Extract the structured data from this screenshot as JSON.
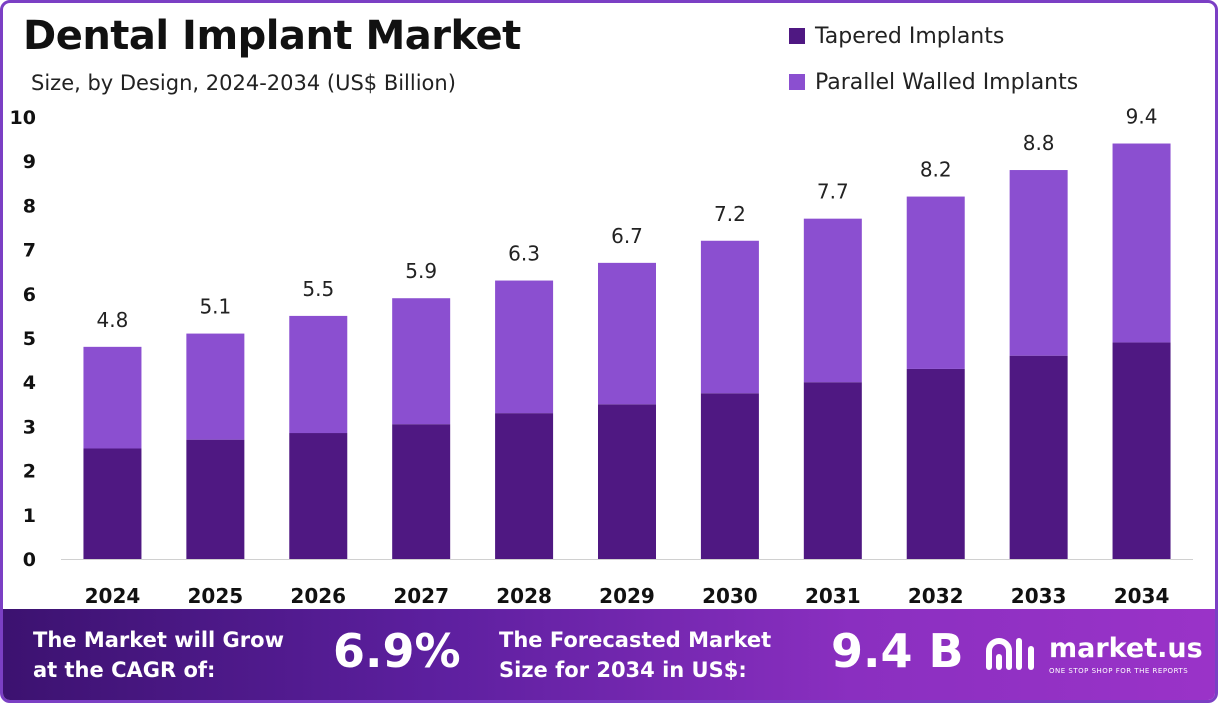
{
  "title": "Dental Implant Market",
  "subtitle": "Size, by Design, 2024-2034 (US$ Billion)",
  "colors": {
    "tapered": "#4f1882",
    "parallel": "#8b4fd0",
    "accent": "#7b3fc4"
  },
  "chart_data": {
    "type": "bar",
    "stacked": true,
    "title": "Dental Implant Market",
    "subtitle": "Size, by Design, 2024-2034 (US$ Billion)",
    "categories": [
      "2024",
      "2025",
      "2026",
      "2027",
      "2028",
      "2029",
      "2030",
      "2031",
      "2032",
      "2033",
      "2034"
    ],
    "series": [
      {
        "name": "Tapered Implants",
        "color": "#4f1882",
        "values": [
          2.5,
          2.7,
          2.85,
          3.05,
          3.3,
          3.5,
          3.75,
          4.0,
          4.3,
          4.6,
          4.9
        ]
      },
      {
        "name": "Parallel Walled Implants",
        "color": "#8b4fd0",
        "values": [
          2.3,
          2.4,
          2.65,
          2.85,
          3.0,
          3.2,
          3.45,
          3.7,
          3.9,
          4.2,
          4.5
        ]
      }
    ],
    "totals": [
      "4.8",
      "5.1",
      "5.5",
      "5.9",
      "6.3",
      "6.7",
      "7.2",
      "7.7",
      "8.2",
      "8.8",
      "9.4"
    ],
    "ylim": [
      0,
      10
    ],
    "yticks": [
      "0",
      "1",
      "2",
      "3",
      "4",
      "5",
      "6",
      "7",
      "8",
      "9",
      "10"
    ],
    "grid": false,
    "legend": "top-right"
  },
  "banner": {
    "cagr_label_line1": "The Market will Grow",
    "cagr_label_line2": "at the CAGR of:",
    "cagr_value": "6.9%",
    "forecast_label_line1": "The Forecasted Market",
    "forecast_label_line2": "Size for 2034 in US$:",
    "forecast_value": "9.4 B",
    "logo_name": "market.us",
    "logo_tagline": "ONE STOP SHOP FOR THE REPORTS"
  }
}
